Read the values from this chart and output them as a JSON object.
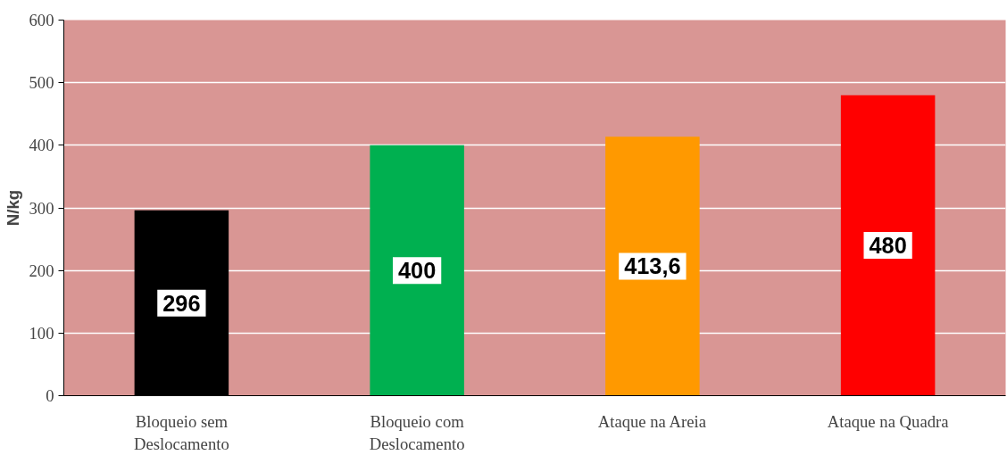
{
  "chart_data": {
    "type": "bar",
    "ylabel": "N/kg",
    "categories": [
      "Bloqueio sem Deslocamento",
      "Bloqueio com Deslocamento",
      "Ataque na Areia",
      "Ataque na Quadra"
    ],
    "values": [
      296,
      400,
      413.6,
      480
    ],
    "colors": [
      "#000000",
      "#00b050",
      "#ff9900",
      "#ff0000"
    ],
    "value_labels": [
      "296",
      "400",
      "413,6",
      "480"
    ],
    "ylim": [
      0,
      600
    ],
    "yticks": [
      0,
      100,
      200,
      300,
      400,
      500,
      600
    ],
    "grid": "y"
  }
}
